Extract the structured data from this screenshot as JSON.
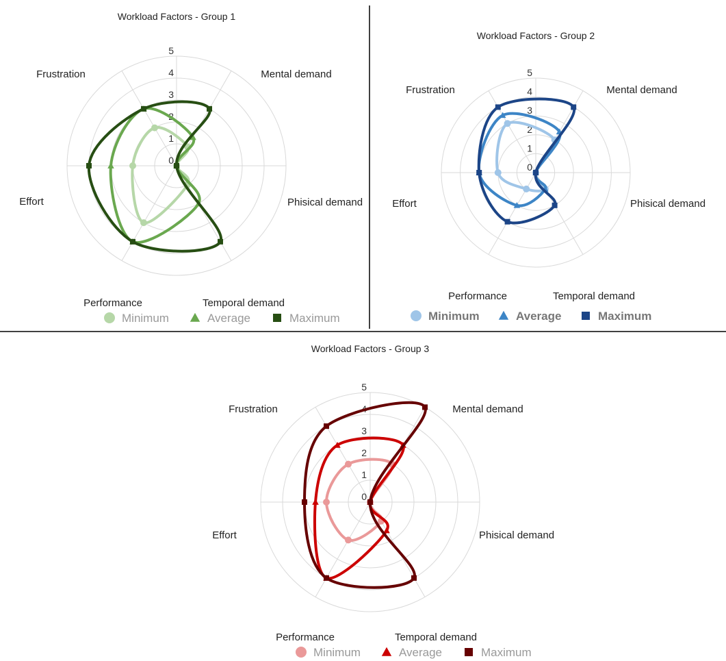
{
  "chart_data": [
    {
      "type": "radar",
      "title": "Workload Factors - Group 1",
      "categories": [
        "Mental demand",
        "Phisical demand",
        "Temporal demand",
        "Performance",
        "Effort",
        "Frustration"
      ],
      "rlim": [
        0,
        5
      ],
      "r_ticks": [
        "0",
        "1",
        "2",
        "3",
        "4",
        "5"
      ],
      "grid": true,
      "legend_position": "bottom",
      "legend_style": "normal",
      "series": [
        {
          "name": "Minimum",
          "marker": "circle",
          "color": "#b6d7a8",
          "values": [
            1,
            0,
            1,
            3,
            2,
            2
          ]
        },
        {
          "name": "Average",
          "marker": "triangle",
          "color": "#6aa84f",
          "values": [
            1.5,
            0,
            2,
            4,
            3,
            3
          ]
        },
        {
          "name": "Maximum",
          "marker": "square",
          "color": "#274e13",
          "values": [
            3,
            0,
            4,
            4,
            4,
            3
          ]
        }
      ]
    },
    {
      "type": "radar",
      "title": "Workload Factors - Group 2",
      "categories": [
        "Mental demand",
        "Phisical demand",
        "Temporal demand",
        "Performance",
        "Effort",
        "Frustration"
      ],
      "rlim": [
        0,
        5
      ],
      "r_ticks": [
        "0",
        "1",
        "2",
        "3",
        "4",
        "5"
      ],
      "grid": true,
      "legend_position": "bottom",
      "legend_style": "bold",
      "series": [
        {
          "name": "Minimum",
          "marker": "circle",
          "color": "#9fc5e8",
          "values": [
            2,
            0,
            1,
            1,
            2,
            3
          ]
        },
        {
          "name": "Average",
          "marker": "triangle",
          "color": "#3d85c6",
          "values": [
            2.5,
            0,
            1,
            2,
            3,
            3.5
          ]
        },
        {
          "name": "Maximum",
          "marker": "square",
          "color": "#1c4587",
          "values": [
            4,
            0,
            2,
            3,
            3,
            4
          ]
        }
      ]
    },
    {
      "type": "radar",
      "title": "Workload Factors - Group 3",
      "categories": [
        "Mental demand",
        "Phisical demand",
        "Temporal demand",
        "Performance",
        "Effort",
        "Frustration"
      ],
      "rlim": [
        0,
        5
      ],
      "r_ticks": [
        "0",
        "1",
        "2",
        "3",
        "4",
        "5"
      ],
      "grid": true,
      "legend_position": "bottom",
      "legend_style": "normal",
      "series": [
        {
          "name": "Minimum",
          "marker": "circle",
          "color": "#ea9999",
          "values": [
            2,
            0,
            1,
            2,
            2,
            2
          ]
        },
        {
          "name": "Average",
          "marker": "triangle",
          "color": "#cc0000",
          "values": [
            3,
            0,
            1.5,
            4,
            2.5,
            3
          ]
        },
        {
          "name": "Maximum",
          "marker": "square",
          "color": "#660000",
          "values": [
            5,
            0,
            4,
            4,
            3,
            4
          ]
        }
      ]
    }
  ]
}
